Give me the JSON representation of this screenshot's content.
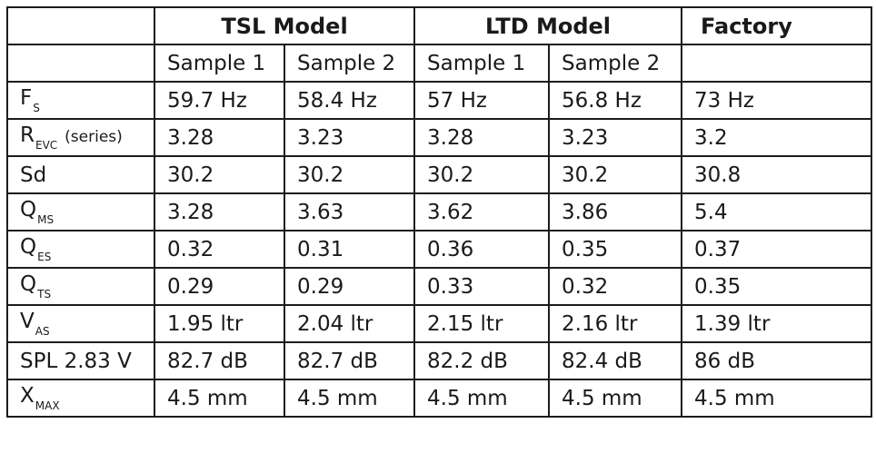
{
  "header": {
    "groups": [
      "TSL Model",
      "LTD Model",
      "Factory"
    ],
    "samples": [
      "Sample 1",
      "Sample 2",
      "Sample 1",
      "Sample 2",
      ""
    ]
  },
  "rows": [
    {
      "label": "F",
      "sub": "S",
      "note": "",
      "values": [
        "59.7 Hz",
        "58.4 Hz",
        "57 Hz",
        "56.8 Hz",
        "73 Hz"
      ]
    },
    {
      "label": "R",
      "sub": "EVC",
      "note": "(series)",
      "values": [
        "3.28",
        "3.23",
        "3.28",
        "3.23",
        "3.2"
      ]
    },
    {
      "label": "Sd",
      "sub": "",
      "note": "",
      "values": [
        "30.2",
        "30.2",
        "30.2",
        "30.2",
        "30.8"
      ]
    },
    {
      "label": "Q",
      "sub": "MS",
      "note": "",
      "values": [
        "3.28",
        "3.63",
        "3.62",
        "3.86",
        "5.4"
      ]
    },
    {
      "label": "Q",
      "sub": "ES",
      "note": "",
      "values": [
        "0.32",
        "0.31",
        "0.36",
        "0.35",
        "0.37"
      ]
    },
    {
      "label": "Q",
      "sub": "TS",
      "note": "",
      "values": [
        "0.29",
        "0.29",
        "0.33",
        "0.32",
        "0.35"
      ]
    },
    {
      "label": "V",
      "sub": "AS",
      "note": "",
      "values": [
        "1.95 ltr",
        "2.04 ltr",
        "2.15 ltr",
        "2.16 ltr",
        "1.39 ltr"
      ]
    },
    {
      "label": "SPL 2.83 V",
      "sub": "",
      "note": "",
      "values": [
        "82.7 dB",
        "82.7 dB",
        "82.2 dB",
        "82.4 dB",
        "86 dB"
      ]
    },
    {
      "label": "X",
      "sub": "MAX",
      "note": "",
      "values": [
        "4.5 mm",
        "4.5 mm",
        "4.5 mm",
        "4.5 mm",
        "4.5 mm"
      ]
    }
  ]
}
